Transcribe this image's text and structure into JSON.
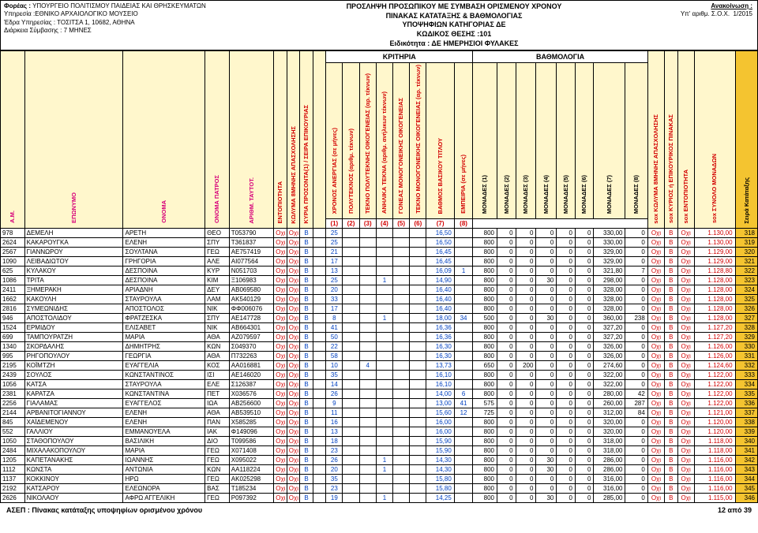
{
  "header": {
    "foreas_label": "Φορέας :",
    "foreas": "ΥΠΟΥΡΓΕΙΟ ΠΟΛΙΤΙΣΜΟΥ ΠΑΙΔΕΙΑΣ ΚΑΙ ΘΡΗΣΚΕΥΜΑΤΩΝ",
    "ypiresia_label": "Υπηρεσία :",
    "ypiresia": "ΕΘΝΙΚΟ ΑΡΧΑΙΟΛΟΓΙΚΟ ΜΟΥΣΕΙΟ",
    "edra_label": "Έδρα Υπηρεσίας :",
    "edra": "ΤΟΣΙΤΣΑ 1, 10682, ΑΘΗΝΑ",
    "diarkeia_label": "Διάρκεια Σύμβασης :",
    "diarkeia": "7 ΜΗΝΕΣ",
    "center_l1": "ΠΡΟΣΛΗΨΗ ΠΡΟΣΩΠΙΚΟΥ ΜΕ ΣΥΜΒΑΣΗ ΟΡΙΣΜΕΝΟΥ ΧΡΟΝΟΥ",
    "center_l2": "ΠΙΝΑΚΑΣ ΚΑΤΑΤΑΞΗΣ & ΒΑΘΜΟΛΟΓΙΑΣ",
    "center_l3": "ΥΠΟΨΗΦΙΩΝ ΚΑΤΗΓΟΡΙΑΣ ΔΕ",
    "center_l4": "ΚΩΔΙΚΟΣ ΘΕΣΗΣ :101",
    "center_l5": "Ειδικότητα :  ΔΕ ΗΜΕΡΗΣΙΟΙ  ΦΥΛΑΚΕΣ",
    "anak_label": "Ανακοίνωση :",
    "yparithm_label": "Υπ' αριθμ. Σ.Ο.Χ.",
    "yparithm": "1/2015"
  },
  "groups": {
    "kritiria": "ΚΡΙΤΗΡΙΑ",
    "bathmologia": "ΒΑΘΜΟΛΟΓΙΑ"
  },
  "cols": {
    "am": "Α.Μ.",
    "eponimo": "ΕΠΩΝΥΜΟ",
    "onoma": "ΟΝΟΜΑ",
    "patros": "ΟΝΟΜΑ ΠΑΤΡΟΣ",
    "at": "ΑΡΙΘΜ. ΤΑΥΤΟΤ.",
    "entop": "ΕΝΤΟΠΙΟΤΗΤΑ",
    "kolyma": "ΚΩΛΥΜΑ 8ΜΗΝΗΣ ΑΠΑΣΧΟΛΗΣΗΣ",
    "kyrios": "ΚΥΡΙΟΣ ή ΕΠΙΚΟΥΡΙΚΟΣ ΠΙΝΑΚΑΣ",
    "seira": "ΚΥΡΙΑ ΠΡΟΣΟΝΤΑ(1) / ΣΕΙΡΑ ΕΠΙΚΟΥΡΙΑΣ",
    "xronos": "ΧΡΟΝΟΣ ΑΝΕΡΓΙΑΣ (σε μήνες)",
    "poly": "ΠΟΛΥΤΕΚΝΟΣ (αριθμ. τέκνων)",
    "tek_poly": "ΤΕΚΝΟ ΠΟΛΥΤΕΚΝΗΣ ΟΙΚΟΓΕΝΕΙΑΣ (αρ. τέκνων)",
    "anilika": "ΑΝΗΛΙΚΑ ΤΕΚΝΑ (αριθμ. ανήλικων τέκνων)",
    "gon_mono": "ΓΟΝΕΑΣ ΜΟΝΟΓΟΝΕΙΚΗΣ ΟΙΚΟΓΕΝΕΙΑΣ",
    "tek_mono": "ΤΕΚΝΟ ΜΟΝΟΓΟΝΕΙΚΗΣ ΟΙΚΟΓΕΝΕΙΑΣ (αρ. τέκνων)",
    "vathmos": "ΒΑΘΜΟΣ ΒΑΣΙΚΟΥ ΤΙΤΛΟΥ",
    "empeiria": "ΕΜΠΕΙΡΙΑ (σε μήνες)",
    "m1": "ΜΟΝΑΔΕΣ (1)",
    "m2": "ΜΟΝΑΔΕΣ (2)",
    "m3": "ΜΟΝΑΔΕΣ (3)",
    "m4": "ΜΟΝΑΔΕΣ (4)",
    "m5": "ΜΟΝΑΔΕΣ (5)",
    "m6": "ΜΟΝΑΔΕΣ (6)",
    "m7": "ΜΟΝΑΔΕΣ (7)",
    "m8": "ΜΟΝΑΔΕΣ (8)",
    "sox_kolyma": "sox ΚΩΛΥΜΑ 8ΜΗΝΗΣ ΑΠΑΣΧΟΛΗΣΗΣ",
    "sox_kyrios": "sox ΚΥΡΙΟΣ ή ΕΠΙΚΟΥΡΙΚΟΣ ΠΙΝΑΚΑΣ",
    "sox_entop": "sox ΕΝΤΟΠΙΟΤΗΤΑ",
    "synolo": "sox ΣΥΝΟΛΟ ΜΟΝΑΔΩΝ",
    "seira_kat": "Σειρά Κατάταξης"
  },
  "numrow": [
    "(1)",
    "(2)",
    "(3)",
    "(4)",
    "(5)",
    "(6)",
    "(7)",
    "(8)"
  ],
  "rows": [
    {
      "am": "978",
      "ep": "ΔΕΜΕΛΗ",
      "on": "ΑΡΕΤΗ",
      "pa": "ΘΕΟ",
      "at": "Τ053790",
      "ent": "Οχι",
      "kol": "Οχι",
      "kyr": "Β",
      "xr": "25",
      "v1": "",
      "v2": "",
      "v3": "",
      "v4": "",
      "v5": "",
      "vb": "16,50",
      "emp": "",
      "m1": "800",
      "m2": "0",
      "m3": "0",
      "m4": "0",
      "m5": "0",
      "m6": "0",
      "m7": "330,00",
      "m8": "0",
      "sk": "Οχι",
      "sy": "Β",
      "se": "Οχι",
      "sum": "1.130,00",
      "rank": "318"
    },
    {
      "am": "2624",
      "ep": "ΚΑΚΑΡΟΥΓΚΑ",
      "on": "ΕΛΕΝΗ",
      "pa": "ΣΠΥ",
      "at": "Τ361837",
      "ent": "Οχι",
      "kol": "Οχι",
      "kyr": "Β",
      "xr": "25",
      "v1": "",
      "v2": "",
      "v3": "",
      "v4": "",
      "v5": "",
      "vb": "16,50",
      "emp": "",
      "m1": "800",
      "m2": "0",
      "m3": "0",
      "m4": "0",
      "m5": "0",
      "m6": "0",
      "m7": "330,00",
      "m8": "0",
      "sk": "Οχι",
      "sy": "Β",
      "se": "Οχι",
      "sum": "1.130,00",
      "rank": "319"
    },
    {
      "am": "2567",
      "ep": "ΓΙΑΝΝΩΡΟΥ",
      "on": "ΣΟΥΛΤΑΝΑ",
      "pa": "ΓΕΩ",
      "at": "ΑΕ757419",
      "ent": "Οχι",
      "kol": "Οχι",
      "kyr": "Β",
      "xr": "21",
      "v1": "",
      "v2": "",
      "v3": "",
      "v4": "",
      "v5": "",
      "vb": "16,45",
      "emp": "",
      "m1": "800",
      "m2": "0",
      "m3": "0",
      "m4": "0",
      "m5": "0",
      "m6": "0",
      "m7": "329,00",
      "m8": "0",
      "sk": "Οχι",
      "sy": "Β",
      "se": "Οχι",
      "sum": "1.129,00",
      "rank": "320"
    },
    {
      "am": "1090",
      "ep": "ΛΕΙΒΑΔΙΩΤΟΥ",
      "on": "ΓΡΗΓΟΡΙΑ",
      "pa": "ΑΛΕ",
      "at": "ΑΙ077564",
      "ent": "Οχι",
      "kol": "Οχι",
      "kyr": "Β",
      "xr": "17",
      "v1": "",
      "v2": "",
      "v3": "",
      "v4": "",
      "v5": "",
      "vb": "16,45",
      "emp": "",
      "m1": "800",
      "m2": "0",
      "m3": "0",
      "m4": "0",
      "m5": "0",
      "m6": "0",
      "m7": "329,00",
      "m8": "0",
      "sk": "Οχι",
      "sy": "Β",
      "se": "Οχι",
      "sum": "1.129,00",
      "rank": "321"
    },
    {
      "am": "625",
      "ep": "ΚΥΛΑΚΟΥ",
      "on": "ΔΕΣΠΟΙΝΑ",
      "pa": "ΚΥΡ",
      "at": "Ν051703",
      "ent": "Οχι",
      "kol": "Οχι",
      "kyr": "Β",
      "xr": "13",
      "v1": "",
      "v2": "",
      "v3": "",
      "v4": "",
      "v5": "",
      "vb": "16,09",
      "emp": "1",
      "m1": "800",
      "m2": "0",
      "m3": "0",
      "m4": "0",
      "m5": "0",
      "m6": "0",
      "m7": "321,80",
      "m8": "7",
      "sk": "Οχι",
      "sy": "Β",
      "se": "Οχι",
      "sum": "1.128,80",
      "rank": "322"
    },
    {
      "am": "1086",
      "ep": "ΤΡΙΤΑ",
      "on": "ΔΕΣΠΟΙΝΑ",
      "pa": "ΚΙΜ",
      "at": "Ξ106983",
      "ent": "Οχι",
      "kol": "Οχι",
      "kyr": "Β",
      "xr": "25",
      "v1": "",
      "v2": "",
      "v3": "1",
      "v4": "",
      "v5": "",
      "vb": "14,90",
      "emp": "",
      "m1": "800",
      "m2": "0",
      "m3": "0",
      "m4": "30",
      "m5": "0",
      "m6": "0",
      "m7": "298,00",
      "m8": "0",
      "sk": "Οχι",
      "sy": "Β",
      "se": "Οχι",
      "sum": "1.128,00",
      "rank": "323"
    },
    {
      "am": "2411",
      "ep": "ΞΗΜΕΡΑΚΗ",
      "on": "ΑΡΙΑΔΝΗ",
      "pa": "ΔΕΥ",
      "at": "ΑΒ069580",
      "ent": "Οχι",
      "kol": "Οχι",
      "kyr": "Β",
      "xr": "20",
      "v1": "",
      "v2": "",
      "v3": "",
      "v4": "",
      "v5": "",
      "vb": "16,40",
      "emp": "",
      "m1": "800",
      "m2": "0",
      "m3": "0",
      "m4": "0",
      "m5": "0",
      "m6": "0",
      "m7": "328,00",
      "m8": "0",
      "sk": "Οχι",
      "sy": "Β",
      "se": "Οχι",
      "sum": "1.128,00",
      "rank": "324"
    },
    {
      "am": "1662",
      "ep": "ΚΑΚΟΥΛΗ",
      "on": "ΣΤΑΥΡΟΥΛΑ",
      "pa": "ΛΑΜ",
      "at": "ΑΚ540129",
      "ent": "Οχι",
      "kol": "Οχι",
      "kyr": "Β",
      "xr": "33",
      "v1": "",
      "v2": "",
      "v3": "",
      "v4": "",
      "v5": "",
      "vb": "16,40",
      "emp": "",
      "m1": "800",
      "m2": "0",
      "m3": "0",
      "m4": "0",
      "m5": "0",
      "m6": "0",
      "m7": "328,00",
      "m8": "0",
      "sk": "Οχι",
      "sy": "Β",
      "se": "Οχι",
      "sum": "1.128,00",
      "rank": "325"
    },
    {
      "am": "2816",
      "ep": "ΣΥΜΕΩΝΙΔΗΣ",
      "on": "ΑΠΟΣΤΟΛΟΣ",
      "pa": "ΝΙΚ",
      "at": "ΦΦ006076",
      "ent": "Οχι",
      "kol": "Οχι",
      "kyr": "Β",
      "xr": "17",
      "v1": "",
      "v2": "",
      "v3": "",
      "v4": "",
      "v5": "",
      "vb": "16,40",
      "emp": "",
      "m1": "800",
      "m2": "0",
      "m3": "0",
      "m4": "0",
      "m5": "0",
      "m6": "0",
      "m7": "328,00",
      "m8": "0",
      "sk": "Οχι",
      "sy": "Β",
      "se": "Οχι",
      "sum": "1.128,00",
      "rank": "326"
    },
    {
      "am": "946",
      "ep": "ΑΠΟΣΤΟΛΙΔΟΥ",
      "on": "ΦΡΑΤΖΕΣΚΑ",
      "pa": "ΣΠΥ",
      "at": "ΑΕ147728",
      "ent": "Οχι",
      "kol": "Οχι",
      "kyr": "Β",
      "xr": "8",
      "v1": "",
      "v2": "",
      "v3": "1",
      "v4": "",
      "v5": "",
      "vb": "18,00",
      "emp": "34",
      "m1": "500",
      "m2": "0",
      "m3": "0",
      "m4": "30",
      "m5": "0",
      "m6": "0",
      "m7": "360,00",
      "m8": "238",
      "sk": "Οχι",
      "sy": "Β",
      "se": "Οχι",
      "sum": "1.128,00",
      "rank": "327"
    },
    {
      "am": "1524",
      "ep": "ΕΡΜΙΔΟΥ",
      "on": "ΕΛΙΣΑΒΕΤ",
      "pa": "ΝΙΚ",
      "at": "ΑΒ664301",
      "ent": "Οχι",
      "kol": "Οχι",
      "kyr": "Β",
      "xr": "41",
      "v1": "",
      "v2": "",
      "v3": "",
      "v4": "",
      "v5": "",
      "vb": "16,36",
      "emp": "",
      "m1": "800",
      "m2": "0",
      "m3": "0",
      "m4": "0",
      "m5": "0",
      "m6": "0",
      "m7": "327,20",
      "m8": "0",
      "sk": "Οχι",
      "sy": "Β",
      "se": "Οχι",
      "sum": "1.127,20",
      "rank": "328"
    },
    {
      "am": "699",
      "ep": "ΤΑΜΠΟΥΡΑΤΖΗ",
      "on": "ΜΑΡΙΑ",
      "pa": "ΑΘΑ",
      "at": "ΑΖ079597",
      "ent": "Οχι",
      "kol": "Οχι",
      "kyr": "Β",
      "xr": "50",
      "v1": "",
      "v2": "",
      "v3": "",
      "v4": "",
      "v5": "",
      "vb": "16,36",
      "emp": "",
      "m1": "800",
      "m2": "0",
      "m3": "0",
      "m4": "0",
      "m5": "0",
      "m6": "0",
      "m7": "327,20",
      "m8": "0",
      "sk": "Οχι",
      "sy": "Β",
      "se": "Οχι",
      "sum": "1.127,20",
      "rank": "329"
    },
    {
      "am": "1340",
      "ep": "ΣΚΟΡΔΑΛΗΣ",
      "on": "ΔΗΜΗΤΡΗΣ",
      "pa": "ΚΩΝ",
      "at": "Σ049370",
      "ent": "Οχι",
      "kol": "Οχι",
      "kyr": "Β",
      "xr": "22",
      "v1": "",
      "v2": "",
      "v3": "",
      "v4": "",
      "v5": "",
      "vb": "16,30",
      "emp": "",
      "m1": "800",
      "m2": "0",
      "m3": "0",
      "m4": "0",
      "m5": "0",
      "m6": "0",
      "m7": "326,00",
      "m8": "0",
      "sk": "Οχι",
      "sy": "Β",
      "se": "Οχι",
      "sum": "1.126,00",
      "rank": "330"
    },
    {
      "am": "995",
      "ep": "ΡΗΓΟΠΟΥΛΟΥ",
      "on": "ΓΕΩΡΓΙΑ",
      "pa": "ΑΘΑ",
      "at": "Π732263",
      "ent": "Οχι",
      "kol": "Οχι",
      "kyr": "Β",
      "xr": "58",
      "v1": "",
      "v2": "",
      "v3": "",
      "v4": "",
      "v5": "",
      "vb": "16,30",
      "emp": "",
      "m1": "800",
      "m2": "0",
      "m3": "0",
      "m4": "0",
      "m5": "0",
      "m6": "0",
      "m7": "326,00",
      "m8": "0",
      "sk": "Οχι",
      "sy": "Β",
      "se": "Οχι",
      "sum": "1.126,00",
      "rank": "331"
    },
    {
      "am": "2195",
      "ep": "ΚΟΪΜΤΖΗ",
      "on": "ΕΥΑΓΓΕΛΙΑ",
      "pa": "ΚΟΣ",
      "at": "ΑΑ016881",
      "ent": "Οχι",
      "kol": "Οχι",
      "kyr": "Β",
      "xr": "10",
      "v1": "",
      "v2": "4",
      "v3": "",
      "v4": "",
      "v5": "",
      "vb": "13,73",
      "emp": "",
      "m1": "650",
      "m2": "0",
      "m3": "200",
      "m4": "0",
      "m5": "0",
      "m6": "0",
      "m7": "274,60",
      "m8": "0",
      "sk": "Οχι",
      "sy": "Β",
      "se": "Οχι",
      "sum": "1.124,60",
      "rank": "332"
    },
    {
      "am": "2439",
      "ep": "ΣΟΥΛΟΣ",
      "on": "ΚΩΝΣΤΑΝΤΙΝΟΣ",
      "pa": "ΙΣΙ",
      "at": "ΑΕ146020",
      "ent": "Οχι",
      "kol": "Οχι",
      "kyr": "Β",
      "xr": "35",
      "v1": "",
      "v2": "",
      "v3": "",
      "v4": "",
      "v5": "",
      "vb": "16,10",
      "emp": "",
      "m1": "800",
      "m2": "0",
      "m3": "0",
      "m4": "0",
      "m5": "0",
      "m6": "0",
      "m7": "322,00",
      "m8": "0",
      "sk": "Οχι",
      "sy": "Β",
      "se": "Οχι",
      "sum": "1.122,00",
      "rank": "333"
    },
    {
      "am": "1056",
      "ep": "ΚΑΤΣΑ",
      "on": "ΣΤΑΥΡΟΥΛΑ",
      "pa": "ΕΛΕ",
      "at": "Σ126387",
      "ent": "Οχι",
      "kol": "Οχι",
      "kyr": "Β",
      "xr": "14",
      "v1": "",
      "v2": "",
      "v3": "",
      "v4": "",
      "v5": "",
      "vb": "16,10",
      "emp": "",
      "m1": "800",
      "m2": "0",
      "m3": "0",
      "m4": "0",
      "m5": "0",
      "m6": "0",
      "m7": "322,00",
      "m8": "0",
      "sk": "Οχι",
      "sy": "Β",
      "se": "Οχι",
      "sum": "1.122,00",
      "rank": "334"
    },
    {
      "am": "2381",
      "ep": "ΚΑΡΑΤΖΑ",
      "on": "ΚΩΝΣΤΑΝΤΙΝΑ",
      "pa": "ΠΕΤ",
      "at": "Χ036576",
      "ent": "Οχι",
      "kol": "Οχι",
      "kyr": "Β",
      "xr": "26",
      "v1": "",
      "v2": "",
      "v3": "",
      "v4": "",
      "v5": "",
      "vb": "14,00",
      "emp": "6",
      "m1": "800",
      "m2": "0",
      "m3": "0",
      "m4": "0",
      "m5": "0",
      "m6": "0",
      "m7": "280,00",
      "m8": "42",
      "sk": "Οχι",
      "sy": "Β",
      "se": "Οχι",
      "sum": "1.122,00",
      "rank": "335"
    },
    {
      "am": "2256",
      "ep": "ΓΙΑΛΑΜΑΣ",
      "on": "ΕΥΑΓΓΕΛΟΣ",
      "pa": "ΙΩΑ",
      "at": "ΑΒ256600",
      "ent": "Οχι",
      "kol": "Οχι",
      "kyr": "Β",
      "xr": "9",
      "v1": "",
      "v2": "",
      "v3": "",
      "v4": "",
      "v5": "",
      "vb": "13,00",
      "emp": "41",
      "m1": "575",
      "m2": "0",
      "m3": "0",
      "m4": "0",
      "m5": "0",
      "m6": "0",
      "m7": "260,00",
      "m8": "287",
      "sk": "Οχι",
      "sy": "Β",
      "se": "Οχι",
      "sum": "1.122,00",
      "rank": "336"
    },
    {
      "am": "2144",
      "ep": "ΑΡΒΑΝΙΤΟΓΙΑΝΝΟΥ",
      "on": "ΕΛΕΝΗ",
      "pa": "ΑΘΑ",
      "at": "ΑΒ539510",
      "ent": "Οχι",
      "kol": "Οχι",
      "kyr": "Β",
      "xr": "11",
      "v1": "",
      "v2": "",
      "v3": "",
      "v4": "",
      "v5": "",
      "vb": "15,60",
      "emp": "12",
      "m1": "725",
      "m2": "0",
      "m3": "0",
      "m4": "0",
      "m5": "0",
      "m6": "0",
      "m7": "312,00",
      "m8": "84",
      "sk": "Οχι",
      "sy": "Β",
      "se": "Οχι",
      "sum": "1.121,00",
      "rank": "337"
    },
    {
      "am": "845",
      "ep": "ΧΑΪΔΕΜΕΝΟΥ",
      "on": "ΕΛΕΝΗ",
      "pa": "ΠΑΝ",
      "at": "Χ585285",
      "ent": "Οχι",
      "kol": "Οχι",
      "kyr": "Β",
      "xr": "16",
      "v1": "",
      "v2": "",
      "v3": "",
      "v4": "",
      "v5": "",
      "vb": "16,00",
      "emp": "",
      "m1": "800",
      "m2": "0",
      "m3": "0",
      "m4": "0",
      "m5": "0",
      "m6": "0",
      "m7": "320,00",
      "m8": "0",
      "sk": "Οχι",
      "sy": "Β",
      "se": "Οχι",
      "sum": "1.120,00",
      "rank": "338"
    },
    {
      "am": "552",
      "ep": "ΓΑΛΛΙΟΥ",
      "on": "ΕΜΜΑΝΟΥΕΛΑ",
      "pa": "ΙΑΚ",
      "at": "Φ149096",
      "ent": "Οχι",
      "kol": "Οχι",
      "kyr": "Β",
      "xr": "13",
      "v1": "",
      "v2": "",
      "v3": "",
      "v4": "",
      "v5": "",
      "vb": "16,00",
      "emp": "",
      "m1": "800",
      "m2": "0",
      "m3": "0",
      "m4": "0",
      "m5": "0",
      "m6": "0",
      "m7": "320,00",
      "m8": "0",
      "sk": "Οχι",
      "sy": "Β",
      "se": "Οχι",
      "sum": "1.120,00",
      "rank": "339"
    },
    {
      "am": "1050",
      "ep": "ΣΤΑΘΟΠΟΥΛΟΥ",
      "on": "ΒΑΣΙΛΙΚΗ",
      "pa": "ΔΙΟ",
      "at": "Τ099586",
      "ent": "Οχι",
      "kol": "Οχι",
      "kyr": "Β",
      "xr": "18",
      "v1": "",
      "v2": "",
      "v3": "",
      "v4": "",
      "v5": "",
      "vb": "15,90",
      "emp": "",
      "m1": "800",
      "m2": "0",
      "m3": "0",
      "m4": "0",
      "m5": "0",
      "m6": "0",
      "m7": "318,00",
      "m8": "0",
      "sk": "Οχι",
      "sy": "Β",
      "se": "Οχι",
      "sum": "1.118,00",
      "rank": "340"
    },
    {
      "am": "2484",
      "ep": "ΜΙΧΑΛΑΚΟΠΟΥΛΟΥ",
      "on": "ΜΑΡΙΑ",
      "pa": "ΓΕΩ",
      "at": "Χ071408",
      "ent": "Οχι",
      "kol": "Οχι",
      "kyr": "Β",
      "xr": "23",
      "v1": "",
      "v2": "",
      "v3": "",
      "v4": "",
      "v5": "",
      "vb": "15,90",
      "emp": "",
      "m1": "800",
      "m2": "0",
      "m3": "0",
      "m4": "0",
      "m5": "0",
      "m6": "0",
      "m7": "318,00",
      "m8": "0",
      "sk": "Οχι",
      "sy": "Β",
      "se": "Οχι",
      "sum": "1.118,00",
      "rank": "341"
    },
    {
      "am": "1205",
      "ep": "ΚΑΠΕΤΑΝΑΚΗΣ",
      "on": "ΙΩΑΝΝΗΣ",
      "pa": "ΓΕΩ",
      "at": "Χ095022",
      "ent": "Οχι",
      "kol": "Οχι",
      "kyr": "Β",
      "xr": "26",
      "v1": "",
      "v2": "",
      "v3": "1",
      "v4": "",
      "v5": "",
      "vb": "14,30",
      "emp": "",
      "m1": "800",
      "m2": "0",
      "m3": "0",
      "m4": "30",
      "m5": "0",
      "m6": "0",
      "m7": "286,00",
      "m8": "0",
      "sk": "Οχι",
      "sy": "Β",
      "se": "Οχι",
      "sum": "1.116,00",
      "rank": "342"
    },
    {
      "am": "1112",
      "ep": "ΚΩΝΣΤΑ",
      "on": "ΑΝΤΩΝΙΑ",
      "pa": "ΚΩΝ",
      "at": "ΑΑ118224",
      "ent": "Οχι",
      "kol": "Οχι",
      "kyr": "Β",
      "xr": "20",
      "v1": "",
      "v2": "",
      "v3": "1",
      "v4": "",
      "v5": "",
      "vb": "14,30",
      "emp": "",
      "m1": "800",
      "m2": "0",
      "m3": "0",
      "m4": "30",
      "m5": "0",
      "m6": "0",
      "m7": "286,00",
      "m8": "0",
      "sk": "Οχι",
      "sy": "Β",
      "se": "Οχι",
      "sum": "1.116,00",
      "rank": "343"
    },
    {
      "am": "1137",
      "ep": "ΚΟΚΚΙΝΟΥ",
      "on": "ΗΡΩ",
      "pa": "ΓΕΩ",
      "at": "ΑΚ025298",
      "ent": "Οχι",
      "kol": "Οχι",
      "kyr": "Β",
      "xr": "35",
      "v1": "",
      "v2": "",
      "v3": "",
      "v4": "",
      "v5": "",
      "vb": "15,80",
      "emp": "",
      "m1": "800",
      "m2": "0",
      "m3": "0",
      "m4": "0",
      "m5": "0",
      "m6": "0",
      "m7": "316,00",
      "m8": "0",
      "sk": "Οχι",
      "sy": "Β",
      "se": "Οχι",
      "sum": "1.116,00",
      "rank": "344"
    },
    {
      "am": "2192",
      "ep": "ΚΑΤΣΑΡΟΥ",
      "on": "ΕΛΕΩΝΟΡΑ",
      "pa": "ΒΑΣ",
      "at": "Τ185234",
      "ent": "Οχι",
      "kol": "Οχι",
      "kyr": "Β",
      "xr": "23",
      "v1": "",
      "v2": "",
      "v3": "",
      "v4": "",
      "v5": "",
      "vb": "15,80",
      "emp": "",
      "m1": "800",
      "m2": "0",
      "m3": "0",
      "m4": "0",
      "m5": "0",
      "m6": "0",
      "m7": "316,00",
      "m8": "0",
      "sk": "Οχι",
      "sy": "Β",
      "se": "Οχι",
      "sum": "1.116,00",
      "rank": "345"
    },
    {
      "am": "2626",
      "ep": "ΝΙΚΟΛΑΟΥ",
      "on": "ΑΦΡΩ ΑΓΓΕΛΙΚΗ",
      "pa": "ΓΕΩ",
      "at": "Ρ097392",
      "ent": "Οχι",
      "kol": "Οχι",
      "kyr": "Β",
      "xr": "19",
      "v1": "",
      "v2": "",
      "v3": "1",
      "v4": "",
      "v5": "",
      "vb": "14,25",
      "emp": "",
      "m1": "800",
      "m2": "0",
      "m3": "0",
      "m4": "30",
      "m5": "0",
      "m6": "0",
      "m7": "285,00",
      "m8": "0",
      "sk": "Οχι",
      "sy": "Β",
      "se": "Οχι",
      "sum": "1.115,00",
      "rank": "346"
    }
  ],
  "footer": {
    "left": "ΑΣΕΠ : Πίνακας κατάταξης  υποψηφίων ορισμένου χρόνου",
    "right": "12 από 39"
  },
  "colors": {
    "magenta": "#d6007a",
    "red": "#d20000",
    "blue": "#0040c0",
    "yellow": "#fff7cc",
    "gold": "#f4c430"
  }
}
